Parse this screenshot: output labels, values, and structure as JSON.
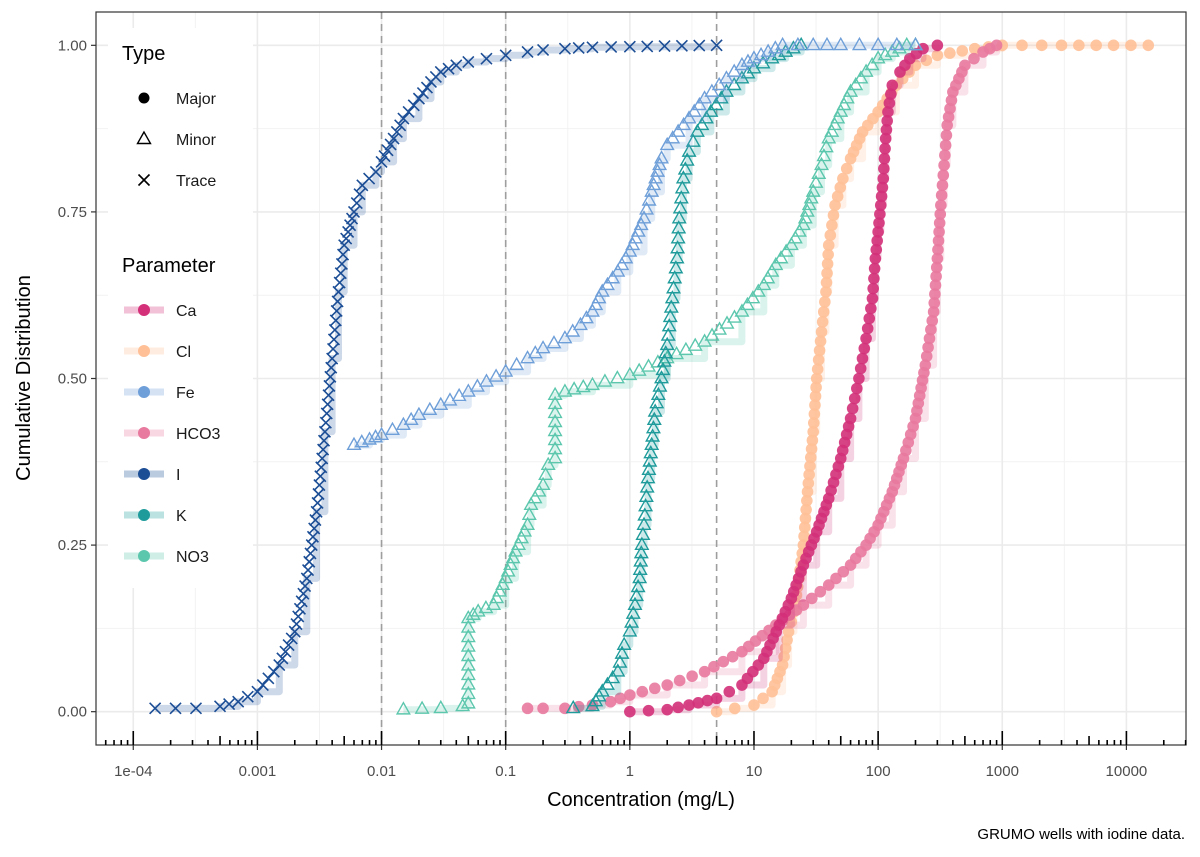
{
  "chart_data": {
    "type": "scatter",
    "subtype": "empirical cumulative distribution (step line + points)",
    "xlabel": "Concentration (mg/L)",
    "ylabel": "Cumulative Distribution",
    "caption": "GRUMO wells with iodine data.",
    "x_scale": "log10",
    "xlim": [
      5.01e-05,
      30200
    ],
    "ylim": [
      -0.05,
      1.05
    ],
    "x_ticks": [
      0.0001,
      0.001,
      0.01,
      0.1,
      1,
      10,
      100,
      1000,
      10000
    ],
    "x_tick_labels": [
      "1e-04",
      "0.001",
      "0.01",
      "0.1",
      "1",
      "10",
      "100",
      "1000",
      "10000"
    ],
    "y_ticks": [
      0,
      0.25,
      0.5,
      0.75,
      1
    ],
    "y_tick_labels": [
      "0.00",
      "0.25",
      "0.50",
      "0.75",
      "1.00"
    ],
    "grid": true,
    "vertical_reference_lines": [
      0.01,
      0.1,
      5
    ],
    "legend_position": "top-left (inside plot)",
    "legend_type": {
      "title": "Type",
      "items": [
        {
          "label": "Major",
          "shape": "circle"
        },
        {
          "label": "Minor",
          "shape": "triangle"
        },
        {
          "label": "Trace",
          "shape": "cross"
        }
      ]
    },
    "legend_parameter": {
      "title": "Parameter",
      "items": [
        {
          "label": "Ca",
          "color": "#d33079"
        },
        {
          "label": "Cl",
          "color": "#ffc097"
        },
        {
          "label": "Fe",
          "color": "#6f9fd8"
        },
        {
          "label": "HCO3",
          "color": "#e8799f"
        },
        {
          "label": "I",
          "color": "#1c4e96"
        },
        {
          "label": "K",
          "color": "#1f9b9b"
        },
        {
          "label": "NO3",
          "color": "#5cc7ad"
        }
      ]
    },
    "series": [
      {
        "name": "I",
        "type": "Trace",
        "shape": "cross",
        "color": "#1c4e96",
        "points": [
          [
            0.00015,
            0.005
          ],
          [
            0.00032,
            0.005
          ],
          [
            0.0005,
            0.008
          ],
          [
            0.0007,
            0.015
          ],
          [
            0.001,
            0.03
          ],
          [
            0.0015,
            0.07
          ],
          [
            0.002,
            0.12
          ],
          [
            0.0025,
            0.2
          ],
          [
            0.003,
            0.3
          ],
          [
            0.0035,
            0.42
          ],
          [
            0.004,
            0.53
          ],
          [
            0.0045,
            0.63
          ],
          [
            0.005,
            0.7
          ],
          [
            0.006,
            0.75
          ],
          [
            0.007,
            0.79
          ],
          [
            0.009,
            0.81
          ],
          [
            0.01,
            0.825
          ],
          [
            0.0125,
            0.86
          ],
          [
            0.015,
            0.89
          ],
          [
            0.02,
            0.92
          ],
          [
            0.025,
            0.945
          ],
          [
            0.03,
            0.96
          ],
          [
            0.04,
            0.97
          ],
          [
            0.05,
            0.975
          ],
          [
            0.07,
            0.98
          ],
          [
            0.1,
            0.985
          ],
          [
            0.15,
            0.99
          ],
          [
            0.2,
            0.993
          ],
          [
            0.3,
            0.995
          ],
          [
            0.5,
            0.997
          ],
          [
            1,
            0.998
          ],
          [
            5,
            1.0
          ]
        ]
      },
      {
        "name": "Fe",
        "type": "Minor",
        "shape": "triangle",
        "color": "#6f9fd8",
        "points": [
          [
            0.006,
            0.4
          ],
          [
            0.008,
            0.408
          ],
          [
            0.01,
            0.415
          ],
          [
            0.015,
            0.43
          ],
          [
            0.02,
            0.445
          ],
          [
            0.03,
            0.46
          ],
          [
            0.05,
            0.48
          ],
          [
            0.07,
            0.495
          ],
          [
            0.1,
            0.51
          ],
          [
            0.15,
            0.53
          ],
          [
            0.2,
            0.545
          ],
          [
            0.3,
            0.56
          ],
          [
            0.4,
            0.58
          ],
          [
            0.5,
            0.6
          ],
          [
            0.6,
            0.63
          ],
          [
            0.8,
            0.66
          ],
          [
            1,
            0.69
          ],
          [
            1.3,
            0.74
          ],
          [
            1.5,
            0.78
          ],
          [
            1.8,
            0.83
          ],
          [
            2,
            0.85
          ],
          [
            3,
            0.89
          ],
          [
            4,
            0.92
          ],
          [
            6,
            0.95
          ],
          [
            8,
            0.97
          ],
          [
            10,
            0.98
          ],
          [
            13,
            0.99
          ],
          [
            17,
            1.0
          ],
          [
            30,
            1.0
          ],
          [
            50,
            1.0
          ],
          [
            100,
            1.0
          ],
          [
            200,
            1.0
          ]
        ]
      },
      {
        "name": "K",
        "type": "Minor",
        "shape": "triangle",
        "color": "#1f9b9b",
        "points": [
          [
            0.35,
            0.005
          ],
          [
            0.5,
            0.008
          ],
          [
            0.6,
            0.03
          ],
          [
            0.8,
            0.06
          ],
          [
            0.9,
            0.1
          ],
          [
            1,
            0.12
          ],
          [
            1.1,
            0.16
          ],
          [
            1.2,
            0.2
          ],
          [
            1.25,
            0.25
          ],
          [
            1.3,
            0.28
          ],
          [
            1.4,
            0.35
          ],
          [
            1.5,
            0.4
          ],
          [
            1.6,
            0.45
          ],
          [
            1.8,
            0.5
          ],
          [
            2,
            0.55
          ],
          [
            2.2,
            0.62
          ],
          [
            2.4,
            0.68
          ],
          [
            2.5,
            0.74
          ],
          [
            2.7,
            0.8
          ],
          [
            3,
            0.84
          ],
          [
            3.5,
            0.87
          ],
          [
            4.5,
            0.9
          ],
          [
            6,
            0.93
          ],
          [
            8,
            0.95
          ],
          [
            10,
            0.965
          ],
          [
            14,
            0.98
          ],
          [
            18,
            0.99
          ],
          [
            24,
            1.0
          ]
        ]
      },
      {
        "name": "NO3",
        "type": "Minor",
        "shape": "triangle",
        "color": "#5cc7ad",
        "points": [
          [
            0.015,
            0.003
          ],
          [
            0.03,
            0.005
          ],
          [
            0.045,
            0.008
          ],
          [
            0.05,
            0.012
          ],
          [
            0.05,
            0.14
          ],
          [
            0.06,
            0.15
          ],
          [
            0.08,
            0.16
          ],
          [
            0.1,
            0.2
          ],
          [
            0.12,
            0.24
          ],
          [
            0.15,
            0.28
          ],
          [
            0.16,
            0.31
          ],
          [
            0.2,
            0.34
          ],
          [
            0.22,
            0.37
          ],
          [
            0.25,
            0.38
          ],
          [
            0.25,
            0.475
          ],
          [
            0.3,
            0.48
          ],
          [
            0.5,
            0.49
          ],
          [
            1,
            0.505
          ],
          [
            2,
            0.53
          ],
          [
            4,
            0.555
          ],
          [
            8,
            0.6
          ],
          [
            12,
            0.64
          ],
          [
            15,
            0.67
          ],
          [
            20,
            0.7
          ],
          [
            25,
            0.73
          ],
          [
            30,
            0.78
          ],
          [
            35,
            0.82
          ],
          [
            40,
            0.86
          ],
          [
            50,
            0.9
          ],
          [
            60,
            0.93
          ],
          [
            80,
            0.96
          ],
          [
            100,
            0.98
          ],
          [
            130,
            0.99
          ],
          [
            170,
            1.0
          ],
          [
            200,
            1.0
          ]
        ]
      },
      {
        "name": "Cl",
        "type": "Major",
        "shape": "circle",
        "color": "#ffc097",
        "points": [
          [
            5,
            0.0
          ],
          [
            7,
            0.005
          ],
          [
            10,
            0.01
          ],
          [
            14,
            0.03
          ],
          [
            17,
            0.07
          ],
          [
            19,
            0.12
          ],
          [
            21,
            0.15
          ],
          [
            23,
            0.2
          ],
          [
            25,
            0.25
          ],
          [
            27,
            0.33
          ],
          [
            30,
            0.42
          ],
          [
            32,
            0.5
          ],
          [
            35,
            0.57
          ],
          [
            38,
            0.63
          ],
          [
            40,
            0.7
          ],
          [
            45,
            0.76
          ],
          [
            52,
            0.8
          ],
          [
            60,
            0.83
          ],
          [
            75,
            0.87
          ],
          [
            100,
            0.9
          ],
          [
            140,
            0.94
          ],
          [
            200,
            0.97
          ],
          [
            300,
            0.985
          ],
          [
            600,
            0.995
          ],
          [
            1000,
            1.0
          ],
          [
            3000,
            1.0
          ],
          [
            15000,
            1.0
          ]
        ]
      },
      {
        "name": "Ca",
        "type": "Major",
        "shape": "circle",
        "color": "#d33079",
        "points": [
          [
            1,
            0.0
          ],
          [
            2,
            0.003
          ],
          [
            3,
            0.01
          ],
          [
            5,
            0.02
          ],
          [
            8,
            0.04
          ],
          [
            12,
            0.08
          ],
          [
            16,
            0.13
          ],
          [
            20,
            0.17
          ],
          [
            25,
            0.22
          ],
          [
            32,
            0.27
          ],
          [
            40,
            0.32
          ],
          [
            50,
            0.38
          ],
          [
            60,
            0.44
          ],
          [
            70,
            0.5
          ],
          [
            80,
            0.56
          ],
          [
            90,
            0.62
          ],
          [
            95,
            0.68
          ],
          [
            100,
            0.72
          ],
          [
            105,
            0.76
          ],
          [
            110,
            0.8
          ],
          [
            115,
            0.86
          ],
          [
            120,
            0.9
          ],
          [
            130,
            0.94
          ],
          [
            150,
            0.96
          ],
          [
            180,
            0.98
          ],
          [
            230,
            0.995
          ],
          [
            300,
            1.0
          ]
        ]
      },
      {
        "name": "HCO3",
        "type": "Major",
        "shape": "circle",
        "color": "#e8799f",
        "points": [
          [
            0.15,
            0.005
          ],
          [
            0.2,
            0.005
          ],
          [
            0.3,
            0.005
          ],
          [
            0.5,
            0.01
          ],
          [
            0.7,
            0.015
          ],
          [
            1,
            0.025
          ],
          [
            2,
            0.04
          ],
          [
            4,
            0.06
          ],
          [
            8,
            0.09
          ],
          [
            15,
            0.13
          ],
          [
            25,
            0.16
          ],
          [
            40,
            0.19
          ],
          [
            60,
            0.22
          ],
          [
            80,
            0.25
          ],
          [
            100,
            0.28
          ],
          [
            130,
            0.33
          ],
          [
            160,
            0.38
          ],
          [
            200,
            0.44
          ],
          [
            240,
            0.52
          ],
          [
            280,
            0.6
          ],
          [
            300,
            0.68
          ],
          [
            320,
            0.76
          ],
          [
            340,
            0.82
          ],
          [
            360,
            0.88
          ],
          [
            400,
            0.93
          ],
          [
            500,
            0.97
          ],
          [
            700,
            0.99
          ],
          [
            900,
            1.0
          ]
        ]
      }
    ]
  }
}
